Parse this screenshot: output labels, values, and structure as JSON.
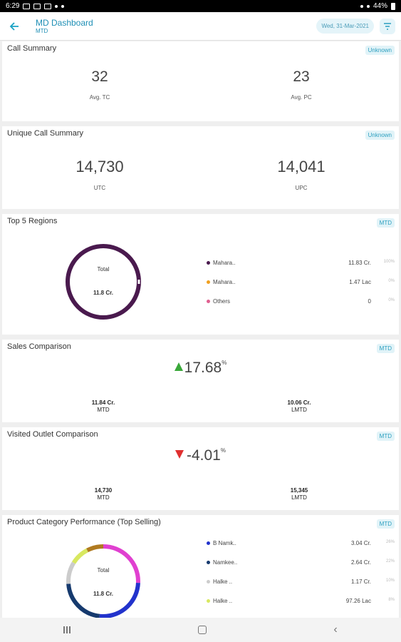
{
  "status": {
    "time": "6:29",
    "battery": "44%"
  },
  "header": {
    "title": "MD Dashboard",
    "subtitle": "MTD",
    "date": "Wed, 31-Mar-2021"
  },
  "call_summary": {
    "title": "Call Summary",
    "chip": "Unknown",
    "left": {
      "value": "32",
      "label": "Avg. TC"
    },
    "right": {
      "value": "23",
      "label": "Avg. PC"
    }
  },
  "unique_call_summary": {
    "title": "Unique Call Summary",
    "chip": "Unknown",
    "left": {
      "value": "14,730",
      "label": "UTC"
    },
    "right": {
      "value": "14,041",
      "label": "UPC"
    }
  },
  "top_regions": {
    "title": "Top 5 Regions",
    "chip": "MTD",
    "donut_label": "Total",
    "donut_value": "11.8 Cr.",
    "items": [
      {
        "name": "Mahara..",
        "value": "11.83 Cr.",
        "pct": "100%",
        "color": "#4a1a4e"
      },
      {
        "name": "Mahara..",
        "value": "1.47 Lac",
        "pct": "0%",
        "color": "#f0a020"
      },
      {
        "name": "Others",
        "value": "0",
        "pct": "0%",
        "color": "#e06090"
      }
    ]
  },
  "sales_comparison": {
    "title": "Sales Comparison",
    "chip": "MTD",
    "value": "17.68",
    "unit": "%",
    "left": {
      "value": "11.84 Cr.",
      "label": "MTD"
    },
    "right": {
      "value": "10.06 Cr.",
      "label": "LMTD"
    },
    "trend": "up",
    "trend_color": "#3aa83a"
  },
  "visited_outlet": {
    "title": "Visited Outlet Comparison",
    "chip": "MTD",
    "value": "-4.01",
    "unit": "%",
    "left": {
      "value": "14,730",
      "label": "MTD"
    },
    "right": {
      "value": "15,345",
      "label": "LMTD"
    },
    "trend": "down",
    "trend_color": "#e03030"
  },
  "product_category": {
    "title": "Product Category Performance (Top Selling)",
    "chip": "MTD",
    "donut_label": "Total",
    "donut_value": "11.8 Cr.",
    "items": [
      {
        "name": "B Namk..",
        "value": "3.04 Cr.",
        "pct": "26%",
        "color": "#2233cc"
      },
      {
        "name": "Namkee..",
        "value": "2.64 Cr.",
        "pct": "22%",
        "color": "#163a6e"
      },
      {
        "name": "Halke ..",
        "value": "1.17 Cr.",
        "pct": "10%",
        "color": "#cccccc"
      },
      {
        "name": "Halke ..",
        "value": "97.26 Lac",
        "pct": "8%",
        "color": "#d8e860"
      }
    ]
  }
}
